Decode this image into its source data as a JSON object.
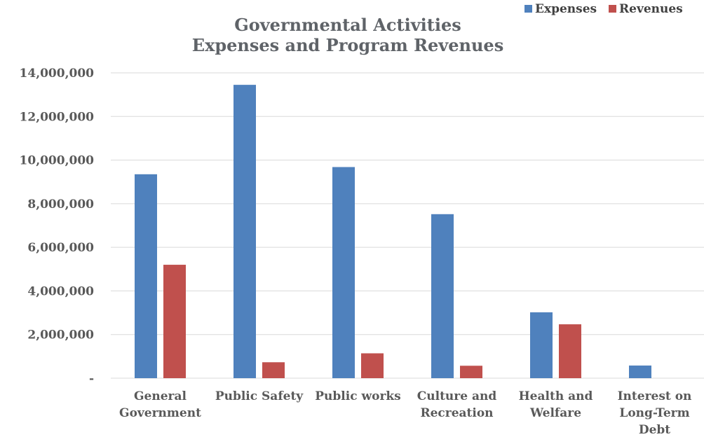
{
  "chart_data": {
    "type": "bar",
    "title": [
      "Governmental Activities",
      "Expenses and Program Revenues"
    ],
    "xlabel": "",
    "ylabel": "",
    "ylim": [
      0,
      14000000
    ],
    "yticks": [
      0,
      2000000,
      4000000,
      6000000,
      8000000,
      10000000,
      12000000,
      14000000
    ],
    "ytick_labels": [
      "-",
      "2,000,000",
      "4,000,000",
      "6,000,000",
      "8,000,000",
      "10,000,000",
      "12,000,000",
      "14,000,000"
    ],
    "categories": [
      [
        "General",
        "Government"
      ],
      [
        "Public Safety"
      ],
      [
        "Public works"
      ],
      [
        "Culture and",
        "Recreation"
      ],
      [
        "Health and",
        "Welfare"
      ],
      [
        "Interest on",
        "Long-Term",
        "Debt"
      ]
    ],
    "series": [
      {
        "name": "Expenses",
        "color": "#4f81bd",
        "values": [
          9350000,
          13450000,
          9680000,
          7520000,
          3020000,
          580000
        ]
      },
      {
        "name": "Revenues",
        "color": "#c0504d",
        "values": [
          5200000,
          730000,
          1140000,
          570000,
          2470000,
          0
        ]
      }
    ],
    "grid": true,
    "legend_position": "top-right"
  }
}
